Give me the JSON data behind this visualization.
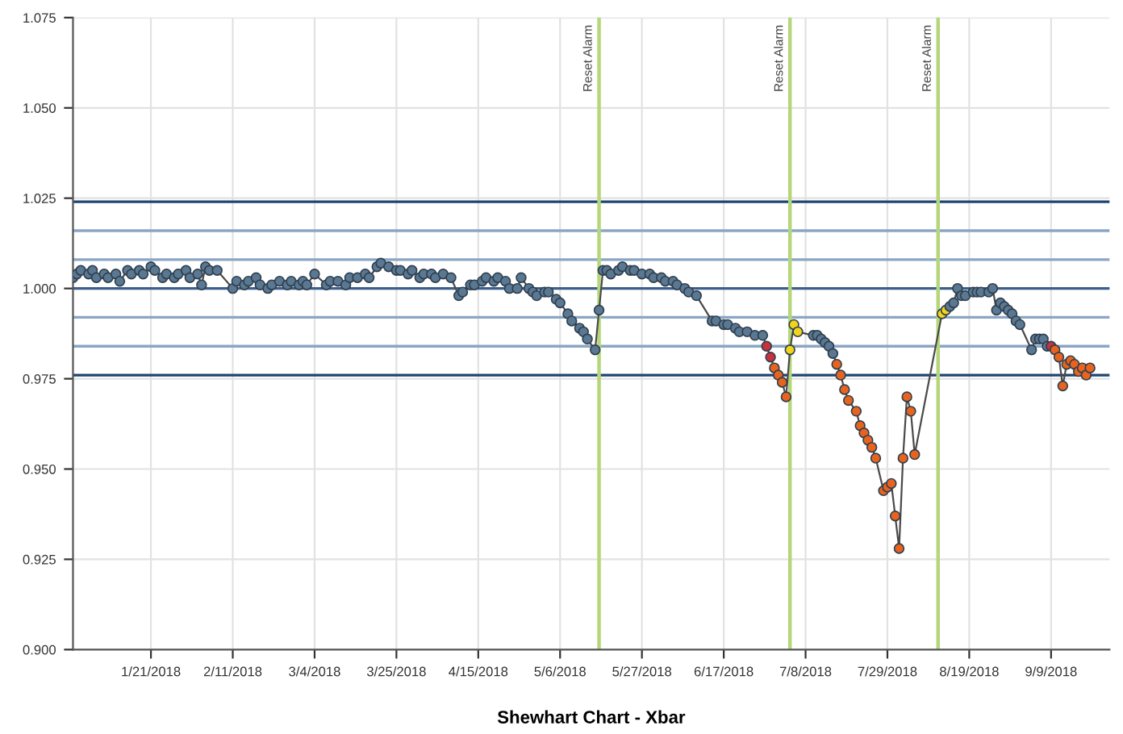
{
  "chart_data": {
    "type": "line",
    "xlabel": "Shewhart Chart - Xbar",
    "xlim": [
      "2018-01-01",
      "2018-09-24"
    ],
    "ylim": [
      0.9,
      1.075
    ],
    "xticks": [
      {
        "value": "2018-01-21",
        "label": "1/21/2018"
      },
      {
        "value": "2018-02-11",
        "label": "2/11/2018"
      },
      {
        "value": "2018-03-04",
        "label": "3/4/2018"
      },
      {
        "value": "2018-03-25",
        "label": "3/25/2018"
      },
      {
        "value": "2018-04-15",
        "label": "4/15/2018"
      },
      {
        "value": "2018-05-06",
        "label": "5/6/2018"
      },
      {
        "value": "2018-05-27",
        "label": "5/27/2018"
      },
      {
        "value": "2018-06-17",
        "label": "6/17/2018"
      },
      {
        "value": "2018-07-08",
        "label": "7/8/2018"
      },
      {
        "value": "2018-07-29",
        "label": "7/29/2018"
      },
      {
        "value": "2018-08-19",
        "label": "8/19/2018"
      },
      {
        "value": "2018-09-09",
        "label": "9/9/2018"
      }
    ],
    "yticks": [
      {
        "value": 0.9,
        "label": "0.900"
      },
      {
        "value": 0.925,
        "label": "0.925"
      },
      {
        "value": 0.95,
        "label": "0.950"
      },
      {
        "value": 0.975,
        "label": "0.975"
      },
      {
        "value": 1.0,
        "label": "1.000"
      },
      {
        "value": 1.025,
        "label": "1.025"
      },
      {
        "value": 1.05,
        "label": "1.050"
      },
      {
        "value": 1.075,
        "label": "1.075"
      }
    ],
    "grid": true,
    "marker": "circle",
    "line_style": "solid",
    "ref_lines": [
      {
        "axis": "y",
        "value": 1.024,
        "color": "#1f4470"
      },
      {
        "axis": "y",
        "value": 1.016,
        "color": "#8aa6c4"
      },
      {
        "axis": "y",
        "value": 1.008,
        "color": "#8aa6c4"
      },
      {
        "axis": "y",
        "value": 1.0,
        "color": "#3a5f8a"
      },
      {
        "axis": "y",
        "value": 0.992,
        "color": "#8aa6c4"
      },
      {
        "axis": "y",
        "value": 0.984,
        "color": "#8aa6c4"
      },
      {
        "axis": "y",
        "value": 0.976,
        "color": "#1f4470"
      },
      {
        "axis": "x",
        "value": "2018-05-16",
        "label": "Reset Alarm",
        "color": "#b5d67a"
      },
      {
        "axis": "x",
        "value": "2018-07-04",
        "label": "Reset Alarm",
        "color": "#b5d67a"
      },
      {
        "axis": "x",
        "value": "2018-08-11",
        "label": "Reset Alarm",
        "color": "#b5d67a"
      }
    ],
    "series": [
      {
        "color": "#4a4a4a",
        "x": [
          "2018-01-01",
          "2018-01-02",
          "2018-01-03",
          "2018-01-05",
          "2018-01-06",
          "2018-01-07",
          "2018-01-09",
          "2018-01-10",
          "2018-01-12",
          "2018-01-13",
          "2018-01-15",
          "2018-01-16",
          "2018-01-18",
          "2018-01-19",
          "2018-01-21",
          "2018-01-22",
          "2018-01-24",
          "2018-01-25",
          "2018-01-27",
          "2018-01-28",
          "2018-01-30",
          "2018-01-31",
          "2018-02-02",
          "2018-02-03",
          "2018-02-04",
          "2018-02-05",
          "2018-02-07",
          "2018-02-11",
          "2018-02-12",
          "2018-02-14",
          "2018-02-15",
          "2018-02-17",
          "2018-02-18",
          "2018-02-20",
          "2018-02-21",
          "2018-02-23",
          "2018-02-25",
          "2018-02-26",
          "2018-02-28",
          "2018-03-01",
          "2018-03-02",
          "2018-03-04",
          "2018-03-07",
          "2018-03-08",
          "2018-03-10",
          "2018-03-12",
          "2018-03-13",
          "2018-03-15",
          "2018-03-17",
          "2018-03-18",
          "2018-03-20",
          "2018-03-21",
          "2018-03-23",
          "2018-03-25",
          "2018-03-26",
          "2018-03-28",
          "2018-03-29",
          "2018-03-31",
          "2018-04-01",
          "2018-04-03",
          "2018-04-04",
          "2018-04-06",
          "2018-04-08",
          "2018-04-10",
          "2018-04-11",
          "2018-04-13",
          "2018-04-14",
          "2018-04-16",
          "2018-04-17",
          "2018-04-19",
          "2018-04-20",
          "2018-04-22",
          "2018-04-23",
          "2018-04-25",
          "2018-04-26",
          "2018-04-28",
          "2018-04-29",
          "2018-04-30",
          "2018-05-02",
          "2018-05-03",
          "2018-05-05",
          "2018-05-06",
          "2018-05-08",
          "2018-05-09",
          "2018-05-11",
          "2018-05-12",
          "2018-05-13",
          "2018-05-15",
          "2018-05-16",
          "2018-05-17",
          "2018-05-18",
          "2018-05-19",
          "2018-05-21",
          "2018-05-22",
          "2018-05-24",
          "2018-05-25",
          "2018-05-27",
          "2018-05-29",
          "2018-05-30",
          "2018-06-01",
          "2018-06-02",
          "2018-06-04",
          "2018-06-05",
          "2018-06-07",
          "2018-06-08",
          "2018-06-10",
          "2018-06-14",
          "2018-06-15",
          "2018-06-17",
          "2018-06-18",
          "2018-06-20",
          "2018-06-21",
          "2018-06-23",
          "2018-06-25",
          "2018-06-27",
          "2018-06-28",
          "2018-06-29",
          "2018-06-30",
          "2018-07-01",
          "2018-07-02",
          "2018-07-03",
          "2018-07-04",
          "2018-07-05",
          "2018-07-06",
          "2018-07-10",
          "2018-07-11",
          "2018-07-12",
          "2018-07-13",
          "2018-07-14",
          "2018-07-15",
          "2018-07-16",
          "2018-07-17",
          "2018-07-18",
          "2018-07-19",
          "2018-07-21",
          "2018-07-22",
          "2018-07-23",
          "2018-07-24",
          "2018-07-25",
          "2018-07-26",
          "2018-07-28",
          "2018-07-29",
          "2018-07-30",
          "2018-07-31",
          "2018-08-01",
          "2018-08-02",
          "2018-08-03",
          "2018-08-04",
          "2018-08-05",
          "2018-08-12",
          "2018-08-13",
          "2018-08-14",
          "2018-08-15",
          "2018-08-16",
          "2018-08-17",
          "2018-08-18",
          "2018-08-20",
          "2018-08-21",
          "2018-08-22",
          "2018-08-24",
          "2018-08-25",
          "2018-08-26",
          "2018-08-27",
          "2018-08-28",
          "2018-08-29",
          "2018-08-30",
          "2018-08-31",
          "2018-09-01",
          "2018-09-04",
          "2018-09-05",
          "2018-09-06",
          "2018-09-07",
          "2018-09-08",
          "2018-09-09",
          "2018-09-10",
          "2018-09-11",
          "2018-09-12",
          "2018-09-13",
          "2018-09-14",
          "2018-09-15",
          "2018-09-16",
          "2018-09-17",
          "2018-09-18",
          "2018-09-19"
        ],
        "values": [
          1.003,
          1.004,
          1.005,
          1.004,
          1.005,
          1.003,
          1.004,
          1.003,
          1.004,
          1.002,
          1.005,
          1.004,
          1.005,
          1.004,
          1.006,
          1.005,
          1.003,
          1.004,
          1.003,
          1.004,
          1.005,
          1.003,
          1.004,
          1.001,
          1.006,
          1.005,
          1.005,
          1.0,
          1.002,
          1.001,
          1.002,
          1.003,
          1.001,
          1.0,
          1.001,
          1.002,
          1.001,
          1.002,
          1.001,
          1.002,
          1.001,
          1.004,
          1.001,
          1.002,
          1.002,
          1.001,
          1.003,
          1.003,
          1.004,
          1.003,
          1.006,
          1.007,
          1.006,
          1.005,
          1.005,
          1.004,
          1.005,
          1.003,
          1.004,
          1.004,
          1.003,
          1.004,
          1.003,
          0.998,
          0.999,
          1.001,
          1.001,
          1.002,
          1.003,
          1.002,
          1.003,
          1.002,
          1.0,
          1.0,
          1.003,
          1.0,
          0.999,
          0.998,
          0.999,
          0.999,
          0.997,
          0.996,
          0.993,
          0.991,
          0.989,
          0.988,
          0.986,
          0.983,
          0.994,
          1.005,
          1.005,
          1.004,
          1.005,
          1.006,
          1.005,
          1.005,
          1.004,
          1.004,
          1.003,
          1.003,
          1.002,
          1.002,
          1.001,
          1.0,
          0.999,
          0.998,
          0.991,
          0.991,
          0.99,
          0.99,
          0.989,
          0.988,
          0.988,
          0.987,
          0.987,
          0.984,
          0.981,
          0.978,
          0.976,
          0.974,
          0.97,
          0.983,
          0.99,
          0.988,
          0.987,
          0.987,
          0.986,
          0.985,
          0.984,
          0.982,
          0.979,
          0.976,
          0.972,
          0.969,
          0.966,
          0.962,
          0.96,
          0.958,
          0.956,
          0.953,
          0.944,
          0.945,
          0.946,
          0.937,
          0.928,
          0.953,
          0.97,
          0.966,
          0.954,
          0.993,
          0.994,
          0.995,
          0.996,
          1.0,
          0.998,
          0.998,
          0.999,
          0.999,
          0.999,
          0.999,
          1.0,
          0.994,
          0.996,
          0.995,
          0.994,
          0.993,
          0.991,
          0.99,
          0.983,
          0.986,
          0.986,
          0.986,
          0.984,
          0.984,
          0.983,
          0.981,
          0.973,
          0.979,
          0.98,
          0.979,
          0.977,
          0.978,
          0.976,
          0.978
        ],
        "colors": [
          "#5a7892",
          "#5a7892",
          "#5a7892",
          "#5a7892",
          "#5a7892",
          "#5a7892",
          "#5a7892",
          "#5a7892",
          "#5a7892",
          "#5a7892",
          "#5a7892",
          "#5a7892",
          "#5a7892",
          "#5a7892",
          "#5a7892",
          "#5a7892",
          "#5a7892",
          "#5a7892",
          "#5a7892",
          "#5a7892",
          "#5a7892",
          "#5a7892",
          "#5a7892",
          "#5a7892",
          "#5a7892",
          "#5a7892",
          "#5a7892",
          "#5a7892",
          "#5a7892",
          "#5a7892",
          "#5a7892",
          "#5a7892",
          "#5a7892",
          "#5a7892",
          "#5a7892",
          "#5a7892",
          "#5a7892",
          "#5a7892",
          "#5a7892",
          "#5a7892",
          "#5a7892",
          "#5a7892",
          "#5a7892",
          "#5a7892",
          "#5a7892",
          "#5a7892",
          "#5a7892",
          "#5a7892",
          "#5a7892",
          "#5a7892",
          "#5a7892",
          "#5a7892",
          "#5a7892",
          "#5a7892",
          "#5a7892",
          "#5a7892",
          "#5a7892",
          "#5a7892",
          "#5a7892",
          "#5a7892",
          "#5a7892",
          "#5a7892",
          "#5a7892",
          "#5a7892",
          "#5a7892",
          "#5a7892",
          "#5a7892",
          "#5a7892",
          "#5a7892",
          "#5a7892",
          "#5a7892",
          "#5a7892",
          "#5a7892",
          "#5a7892",
          "#5a7892",
          "#5a7892",
          "#5a7892",
          "#5a7892",
          "#5a7892",
          "#5a7892",
          "#5a7892",
          "#5a7892",
          "#5a7892",
          "#5a7892",
          "#5a7892",
          "#5a7892",
          "#5a7892",
          "#5a7892",
          "#5a7892",
          "#5a7892",
          "#5a7892",
          "#5a7892",
          "#5a7892",
          "#5a7892",
          "#5a7892",
          "#5a7892",
          "#5a7892",
          "#5a7892",
          "#5a7892",
          "#5a7892",
          "#5a7892",
          "#5a7892",
          "#5a7892",
          "#5a7892",
          "#5a7892",
          "#5a7892",
          "#5a7892",
          "#5a7892",
          "#5a7892",
          "#5a7892",
          "#5a7892",
          "#5a7892",
          "#5a7892",
          "#5a7892",
          "#5a7892",
          "#c8323c",
          "#c8323c",
          "#e8641e",
          "#e8641e",
          "#e8641e",
          "#e8641e",
          "#f2d41c",
          "#f2d41c",
          "#f2d41c",
          "#5a7892",
          "#5a7892",
          "#5a7892",
          "#5a7892",
          "#5a7892",
          "#5a7892",
          "#e8641e",
          "#e8641e",
          "#e8641e",
          "#e8641e",
          "#e8641e",
          "#e8641e",
          "#e8641e",
          "#e8641e",
          "#e8641e",
          "#e8641e",
          "#e8641e",
          "#e8641e",
          "#e8641e",
          "#e8641e",
          "#e8641e",
          "#e8641e",
          "#e8641e",
          "#e8641e",
          "#e8641e",
          "#f2d41c",
          "#f2d41c",
          "#5a7892",
          "#5a7892",
          "#5a7892",
          "#5a7892",
          "#5a7892",
          "#5a7892",
          "#5a7892",
          "#5a7892",
          "#5a7892",
          "#5a7892",
          "#5a7892",
          "#5a7892",
          "#5a7892",
          "#5a7892",
          "#5a7892",
          "#5a7892",
          "#5a7892",
          "#5a7892",
          "#5a7892",
          "#5a7892",
          "#5a7892",
          "#5a7892",
          "#c8323c",
          "#e8641e",
          "#e8641e",
          "#e8641e",
          "#e8641e",
          "#e8641e",
          "#e8641e",
          "#e8641e",
          "#e8641e",
          "#e8641e",
          "#e8641e"
        ]
      }
    ]
  }
}
